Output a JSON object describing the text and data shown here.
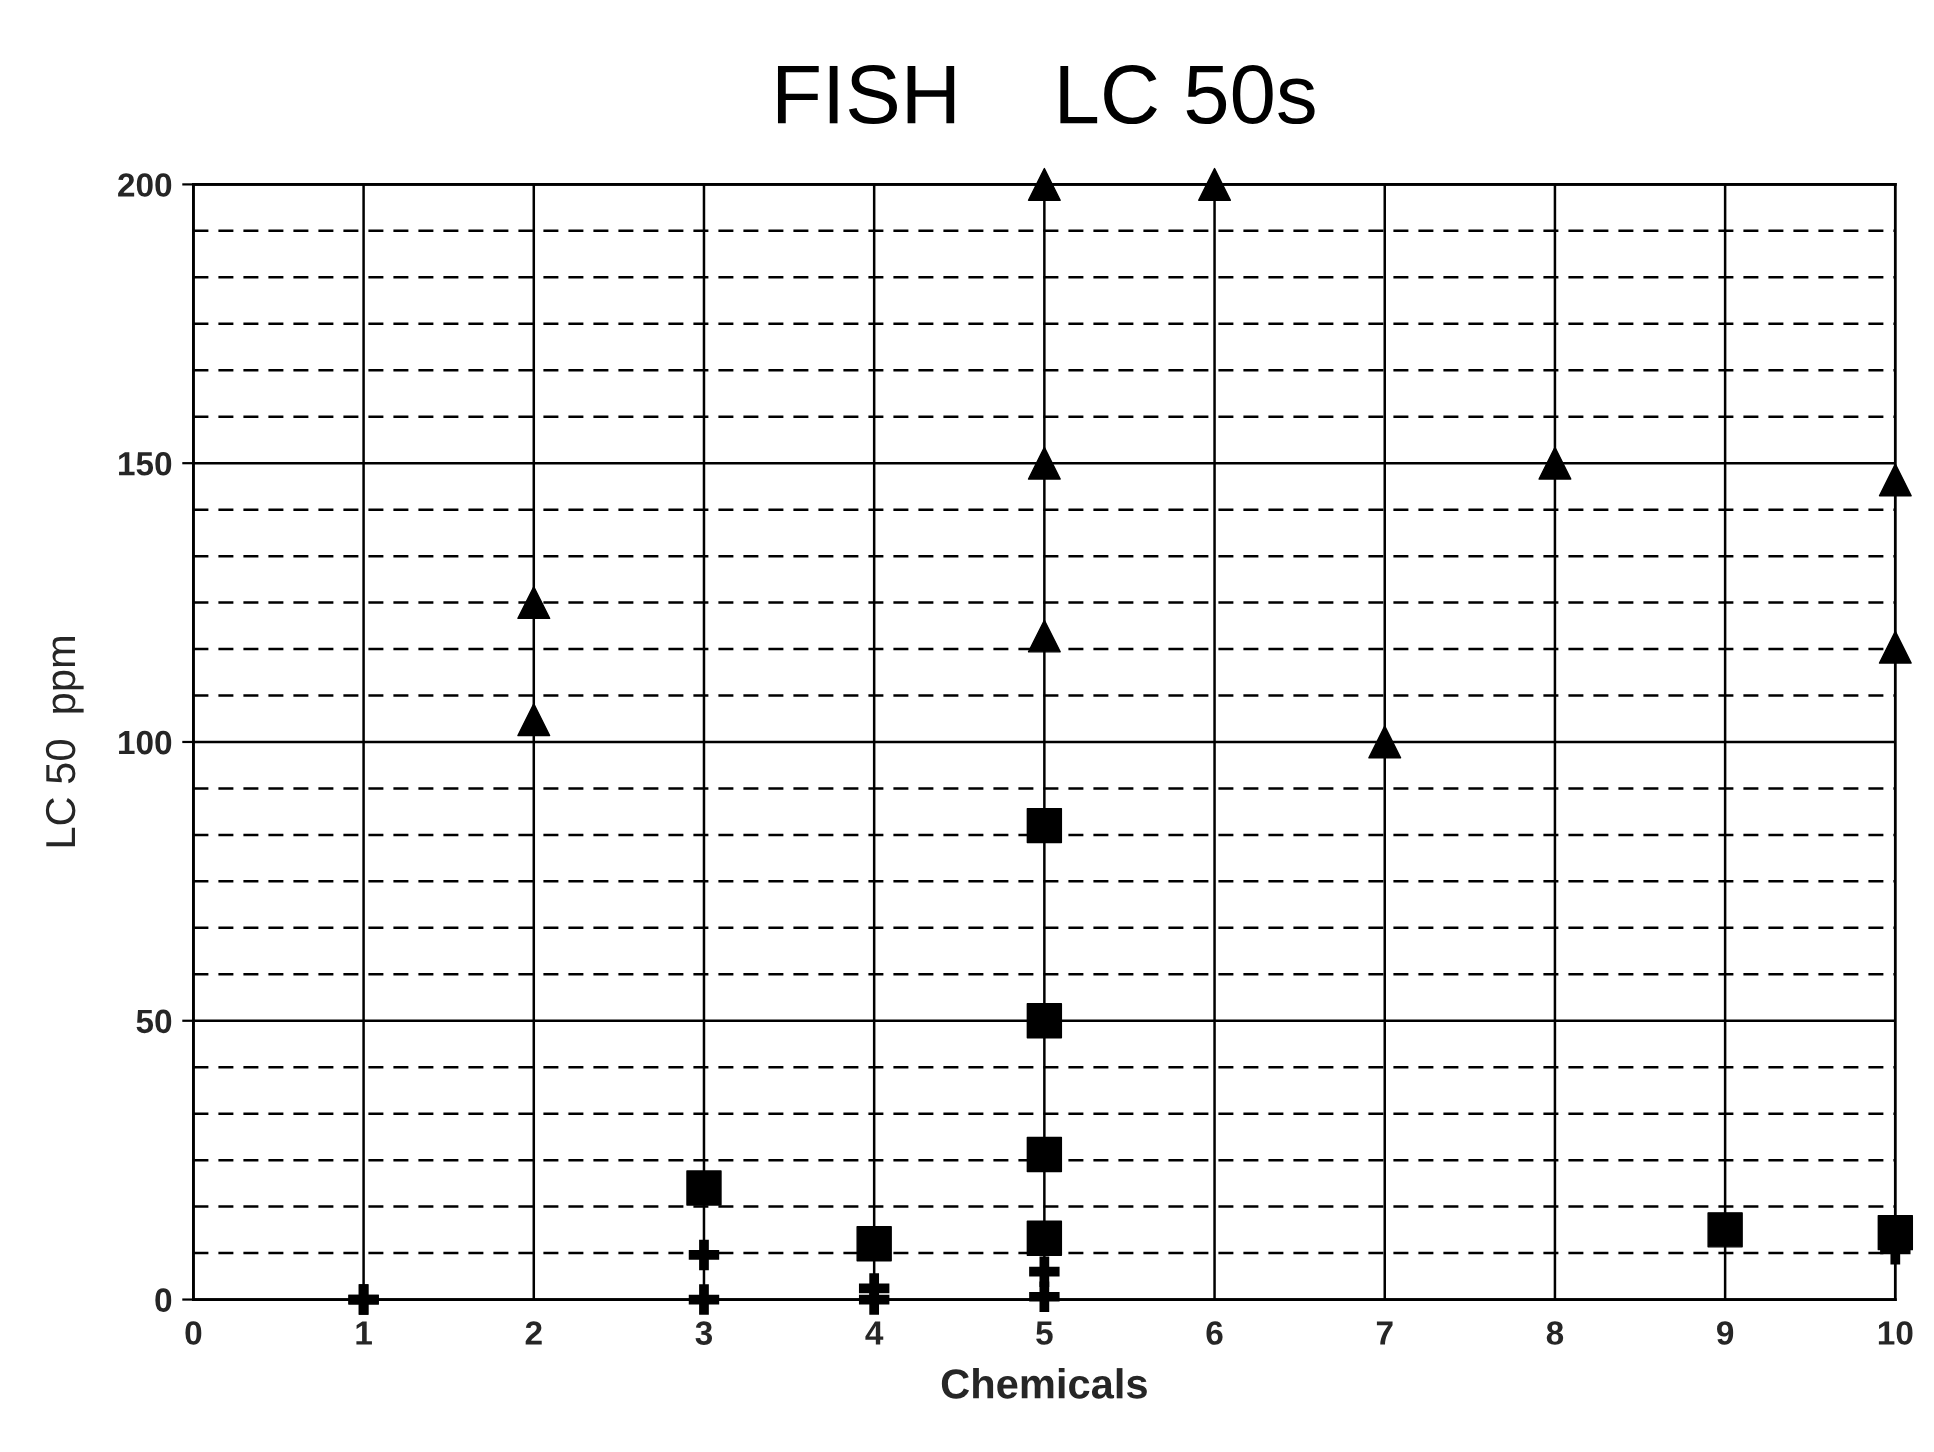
{
  "chart_data": {
    "type": "scatter",
    "title": "FISH    LC 50s",
    "xlabel": "Chemicals",
    "ylabel": "LC 50  ppm",
    "xlim": [
      0,
      10
    ],
    "xticks": [
      0,
      1,
      2,
      3,
      4,
      5,
      6,
      7,
      8,
      9,
      10
    ],
    "ylim": [
      0,
      200
    ],
    "yticks": [
      0,
      {
        "value": 8.33,
        "label": null
      },
      {
        "value": 16.67,
        "label": null
      },
      {
        "value": 25,
        "label": null
      },
      {
        "value": 33.33,
        "label": null
      },
      {
        "value": 41.67,
        "label": null
      },
      50,
      {
        "value": 58.33,
        "label": null
      },
      {
        "value": 66.67,
        "label": null
      },
      {
        "value": 75,
        "label": null
      },
      {
        "value": 83.33,
        "label": null
      },
      {
        "value": 91.67,
        "label": null
      },
      100,
      {
        "value": 108.33,
        "label": null
      },
      {
        "value": 116.67,
        "label": null
      },
      {
        "value": 125,
        "label": null
      },
      {
        "value": 133.33,
        "label": null
      },
      {
        "value": 141.67,
        "label": null
      },
      150,
      {
        "value": 158.33,
        "label": null
      },
      {
        "value": 166.67,
        "label": null
      },
      {
        "value": 175,
        "label": null
      },
      {
        "value": 183.33,
        "label": null
      },
      {
        "value": 191.67,
        "label": null
      },
      200
    ],
    "grid": true,
    "legend": false,
    "series": [
      {
        "color": "#000000",
        "marker": "triangle",
        "x": [
          2,
          2,
          5,
          5,
          5,
          6,
          7,
          8,
          10,
          10
        ],
        "values": [
          125,
          104,
          200,
          150,
          119,
          200,
          100,
          150,
          147,
          117
        ]
      },
      {
        "color": "#000000",
        "marker": "square",
        "x": [
          3,
          4,
          5,
          5,
          5,
          5,
          9,
          10
        ],
        "values": [
          20,
          10,
          85,
          50,
          26,
          11,
          12.5,
          12
        ]
      },
      {
        "color": "#000000",
        "marker": "cross",
        "x": [
          1,
          3,
          4,
          5,
          5,
          10
        ],
        "values": [
          0,
          8,
          2,
          5,
          0.5,
          9
        ]
      },
      {
        "color": "#000000",
        "marker": "cross",
        "x": [
          1,
          3,
          4
        ],
        "values": [
          0,
          0,
          0
        ]
      }
    ]
  }
}
